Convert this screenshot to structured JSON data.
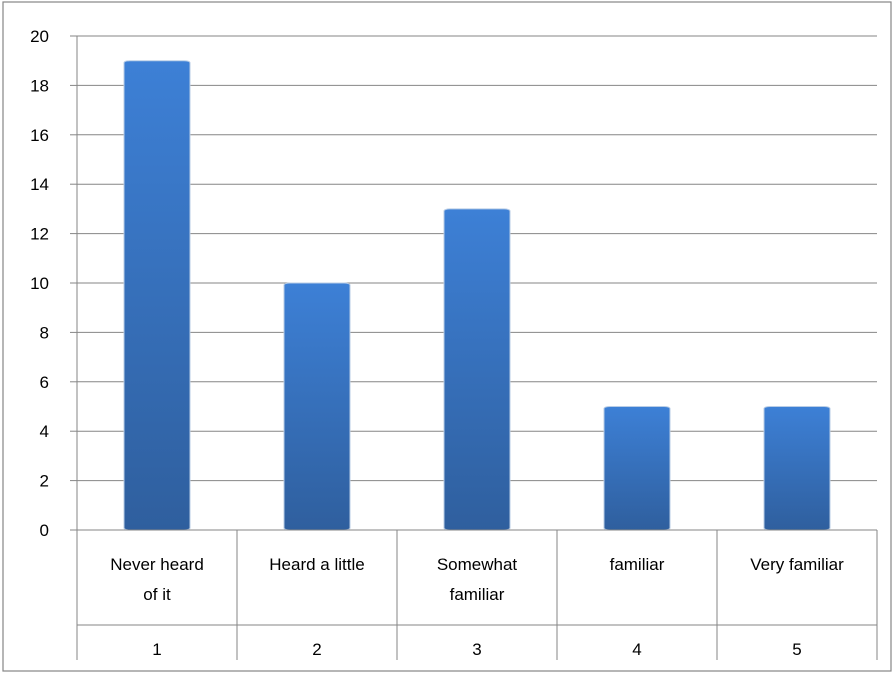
{
  "chart_data": {
    "type": "bar",
    "categories": [
      {
        "label_lines": [
          "Never heard",
          "of it"
        ],
        "number": "1"
      },
      {
        "label_lines": [
          "Heard a little"
        ],
        "number": "2"
      },
      {
        "label_lines": [
          "Somewhat",
          "familiar"
        ],
        "number": "3"
      },
      {
        "label_lines": [
          "familiar"
        ],
        "number": "4"
      },
      {
        "label_lines": [
          "Very familiar"
        ],
        "number": "5"
      }
    ],
    "values": [
      19,
      10,
      13,
      5,
      5
    ],
    "title": "",
    "xlabel": "",
    "ylabel": "",
    "ylim": [
      0,
      20
    ],
    "yticks": [
      "0",
      "2",
      "4",
      "6",
      "8",
      "10",
      "12",
      "14",
      "16",
      "18",
      "20"
    ],
    "grid": true,
    "legend": "none",
    "colors": {
      "bar_top": "#3d80d6",
      "bar_bottom": "#2f5f9e",
      "grid": "#868686",
      "axis": "#868686",
      "frame": "#868686"
    }
  }
}
